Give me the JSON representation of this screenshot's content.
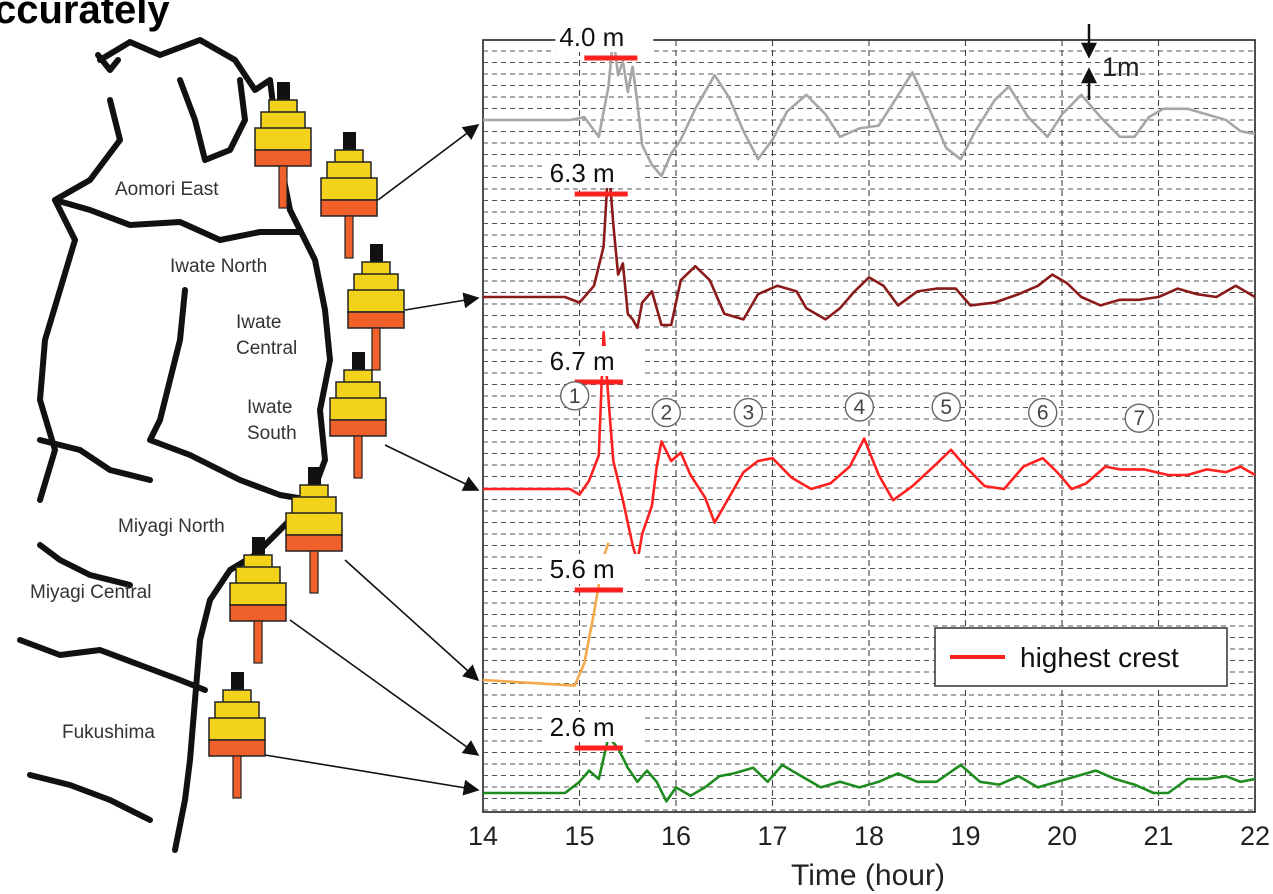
{
  "heading": "ccurately",
  "map_regions": [
    "Aomori East",
    "Iwate North",
    "Iwate Central",
    "Iwate South",
    "Miyagi North",
    "Miyagi Central",
    "Fukushima"
  ],
  "colors": {
    "station1": "#a6a6a6",
    "station2": "#8b1a1a",
    "station3": "#ff2020",
    "station4": "#f4a94c",
    "station5": "#1f8c1f",
    "highest_crest": "#ff2020",
    "buoy_yellow": "#f2d21b",
    "buoy_orange": "#f0602a"
  },
  "chart_data": {
    "type": "line",
    "xlabel": "Time (hour)",
    "xlim": [
      14,
      22
    ],
    "x_ticks": [
      "14",
      "15",
      "16",
      "17",
      "18",
      "19",
      "20",
      "21",
      "22"
    ],
    "scale_bar_label": "1m",
    "legend": {
      "label": "highest crest",
      "position": "lower-right"
    },
    "grid": true,
    "series": [
      {
        "crest_label": "4.0 m",
        "crest_value": 4.0,
        "crest_x": [
          15.05,
          15.6
        ],
        "points": [
          [
            14,
            0
          ],
          [
            14.9,
            0
          ],
          [
            15.05,
            0.1
          ],
          [
            15.2,
            -0.6
          ],
          [
            15.3,
            1.2
          ],
          [
            15.35,
            3.0
          ],
          [
            15.4,
            1.6
          ],
          [
            15.45,
            2.1
          ],
          [
            15.5,
            1.0
          ],
          [
            15.55,
            1.9
          ],
          [
            15.6,
            0.6
          ],
          [
            15.65,
            -0.9
          ],
          [
            15.75,
            -1.6
          ],
          [
            15.85,
            -2.0
          ],
          [
            15.95,
            -1.2
          ],
          [
            16.05,
            -0.7
          ],
          [
            16.2,
            0.4
          ],
          [
            16.4,
            1.6
          ],
          [
            16.55,
            0.8
          ],
          [
            16.7,
            -0.4
          ],
          [
            16.85,
            -1.4
          ],
          [
            17.0,
            -0.7
          ],
          [
            17.15,
            0.3
          ],
          [
            17.35,
            0.9
          ],
          [
            17.55,
            0.2
          ],
          [
            17.7,
            -0.6
          ],
          [
            17.9,
            -0.3
          ],
          [
            18.1,
            -0.2
          ],
          [
            18.25,
            0.6
          ],
          [
            18.45,
            1.7
          ],
          [
            18.6,
            0.6
          ],
          [
            18.8,
            -1.0
          ],
          [
            18.95,
            -1.4
          ],
          [
            19.1,
            -0.4
          ],
          [
            19.3,
            0.7
          ],
          [
            19.45,
            1.2
          ],
          [
            19.65,
            0.1
          ],
          [
            19.85,
            -0.6
          ],
          [
            20.0,
            0.2
          ],
          [
            20.2,
            0.9
          ],
          [
            20.4,
            0.1
          ],
          [
            20.6,
            -0.6
          ],
          [
            20.75,
            -0.6
          ],
          [
            20.9,
            0.1
          ],
          [
            21.05,
            0.4
          ],
          [
            21.3,
            0.4
          ],
          [
            21.5,
            0.2
          ],
          [
            21.7,
            0.0
          ],
          [
            21.85,
            -0.4
          ],
          [
            22.0,
            -0.5
          ]
        ]
      },
      {
        "crest_label": "6.3 m",
        "crest_value": 6.3,
        "crest_x": [
          14.95,
          15.5
        ],
        "points": [
          [
            14,
            0
          ],
          [
            14.85,
            0
          ],
          [
            15.0,
            -0.2
          ],
          [
            15.15,
            0.4
          ],
          [
            15.25,
            1.8
          ],
          [
            15.3,
            4.8
          ],
          [
            15.35,
            2.6
          ],
          [
            15.4,
            0.8
          ],
          [
            15.45,
            1.2
          ],
          [
            15.5,
            -0.6
          ],
          [
            15.55,
            -0.8
          ],
          [
            15.6,
            -1.1
          ],
          [
            15.65,
            -0.2
          ],
          [
            15.75,
            0.2
          ],
          [
            15.85,
            -1.0
          ],
          [
            15.95,
            -1.0
          ],
          [
            16.05,
            0.6
          ],
          [
            16.2,
            1.1
          ],
          [
            16.35,
            0.6
          ],
          [
            16.5,
            -0.6
          ],
          [
            16.7,
            -0.8
          ],
          [
            16.85,
            0.1
          ],
          [
            17.05,
            0.4
          ],
          [
            17.25,
            0.2
          ],
          [
            17.35,
            -0.4
          ],
          [
            17.55,
            -0.8
          ],
          [
            17.7,
            -0.4
          ],
          [
            17.85,
            0.2
          ],
          [
            18.0,
            0.7
          ],
          [
            18.15,
            0.4
          ],
          [
            18.3,
            -0.3
          ],
          [
            18.5,
            0.2
          ],
          [
            18.7,
            0.3
          ],
          [
            18.9,
            0.3
          ],
          [
            19.05,
            -0.3
          ],
          [
            19.3,
            -0.2
          ],
          [
            19.55,
            0.1
          ],
          [
            19.75,
            0.4
          ],
          [
            19.9,
            0.8
          ],
          [
            20.05,
            0.5
          ],
          [
            20.2,
            0.0
          ],
          [
            20.4,
            -0.3
          ],
          [
            20.6,
            -0.1
          ],
          [
            20.8,
            -0.1
          ],
          [
            21.0,
            0.0
          ],
          [
            21.2,
            0.3
          ],
          [
            21.4,
            0.1
          ],
          [
            21.6,
            0.0
          ],
          [
            21.8,
            0.4
          ],
          [
            22.0,
            0.0
          ]
        ]
      },
      {
        "crest_label": "6.7 m",
        "crest_value": 6.7,
        "crest_x": [
          14.95,
          15.45
        ],
        "points": [
          [
            14,
            0
          ],
          [
            14.9,
            0
          ],
          [
            15.0,
            -0.2
          ],
          [
            15.1,
            0.3
          ],
          [
            15.2,
            1.2
          ],
          [
            15.25,
            5.6
          ],
          [
            15.3,
            3.2
          ],
          [
            15.35,
            1.0
          ],
          [
            15.45,
            -0.4
          ],
          [
            15.55,
            -2.0
          ],
          [
            15.6,
            -2.6
          ],
          [
            15.65,
            -1.6
          ],
          [
            15.75,
            -0.6
          ],
          [
            15.8,
            0.8
          ],
          [
            15.85,
            1.7
          ],
          [
            15.95,
            1.0
          ],
          [
            16.05,
            1.3
          ],
          [
            16.15,
            0.5
          ],
          [
            16.3,
            -0.3
          ],
          [
            16.4,
            -1.2
          ],
          [
            16.55,
            -0.3
          ],
          [
            16.7,
            0.6
          ],
          [
            16.85,
            1.0
          ],
          [
            17.0,
            1.1
          ],
          [
            17.2,
            0.4
          ],
          [
            17.4,
            0.0
          ],
          [
            17.6,
            0.2
          ],
          [
            17.8,
            0.8
          ],
          [
            17.95,
            1.8
          ],
          [
            18.1,
            0.5
          ],
          [
            18.25,
            -0.4
          ],
          [
            18.45,
            0.1
          ],
          [
            18.7,
            0.9
          ],
          [
            18.85,
            1.4
          ],
          [
            19.0,
            0.8
          ],
          [
            19.2,
            0.1
          ],
          [
            19.4,
            0.0
          ],
          [
            19.6,
            0.8
          ],
          [
            19.8,
            1.1
          ],
          [
            19.95,
            0.6
          ],
          [
            20.1,
            0.0
          ],
          [
            20.25,
            0.2
          ],
          [
            20.45,
            0.8
          ],
          [
            20.6,
            0.7
          ],
          [
            20.85,
            0.7
          ],
          [
            21.1,
            0.5
          ],
          [
            21.3,
            0.5
          ],
          [
            21.5,
            0.7
          ],
          [
            21.7,
            0.6
          ],
          [
            21.85,
            0.8
          ],
          [
            22.0,
            0.5
          ]
        ]
      },
      {
        "crest_label": "5.6 m",
        "crest_value": 5.6,
        "crest_x": [
          14.95,
          15.45
        ],
        "points": [
          [
            14,
            0
          ],
          [
            14.95,
            -0.2
          ],
          [
            15.05,
            0.6
          ],
          [
            15.15,
            2.4
          ],
          [
            15.25,
            4.4
          ],
          [
            15.3,
            4.9
          ]
        ]
      },
      {
        "crest_label": "2.6 m",
        "crest_value": 2.6,
        "crest_x": [
          14.95,
          15.45
        ],
        "points": [
          [
            14,
            0
          ],
          [
            14.85,
            0
          ],
          [
            15.0,
            0.4
          ],
          [
            15.1,
            0.8
          ],
          [
            15.2,
            0.5
          ],
          [
            15.3,
            2.0
          ],
          [
            15.4,
            1.6
          ],
          [
            15.5,
            0.9
          ],
          [
            15.6,
            0.4
          ],
          [
            15.7,
            0.8
          ],
          [
            15.8,
            0.4
          ],
          [
            15.9,
            -0.3
          ],
          [
            16.0,
            0.2
          ],
          [
            16.15,
            -0.1
          ],
          [
            16.3,
            0.2
          ],
          [
            16.45,
            0.6
          ],
          [
            16.6,
            0.7
          ],
          [
            16.8,
            0.9
          ],
          [
            16.95,
            0.4
          ],
          [
            17.1,
            1.0
          ],
          [
            17.3,
            0.6
          ],
          [
            17.5,
            0.2
          ],
          [
            17.7,
            0.4
          ],
          [
            17.9,
            0.2
          ],
          [
            18.1,
            0.4
          ],
          [
            18.3,
            0.7
          ],
          [
            18.5,
            0.4
          ],
          [
            18.7,
            0.4
          ],
          [
            18.95,
            1.0
          ],
          [
            19.15,
            0.4
          ],
          [
            19.35,
            0.3
          ],
          [
            19.55,
            0.6
          ],
          [
            19.75,
            0.2
          ],
          [
            19.95,
            0.4
          ],
          [
            20.15,
            0.6
          ],
          [
            20.35,
            0.8
          ],
          [
            20.55,
            0.5
          ],
          [
            20.75,
            0.3
          ],
          [
            20.95,
            0.0
          ],
          [
            21.1,
            0.0
          ],
          [
            21.3,
            0.5
          ],
          [
            21.5,
            0.5
          ],
          [
            21.7,
            0.6
          ],
          [
            21.85,
            0.4
          ],
          [
            22.0,
            0.5
          ]
        ]
      }
    ],
    "wave_markers": [
      {
        "label": "①",
        "x": 14.95,
        "series": 3,
        "y": 2.9
      },
      {
        "label": "②",
        "x": 15.9,
        "series": 3,
        "y": 2.3
      },
      {
        "label": "③",
        "x": 16.75,
        "series": 3,
        "y": 2.3
      },
      {
        "label": "④",
        "x": 17.9,
        "series": 3,
        "y": 2.5
      },
      {
        "label": "⑤",
        "x": 18.8,
        "series": 3,
        "y": 2.5
      },
      {
        "label": "⑥",
        "x": 19.8,
        "series": 3,
        "y": 2.3
      },
      {
        "label": "⑦",
        "x": 20.8,
        "series": 3,
        "y": 2.1
      }
    ]
  }
}
